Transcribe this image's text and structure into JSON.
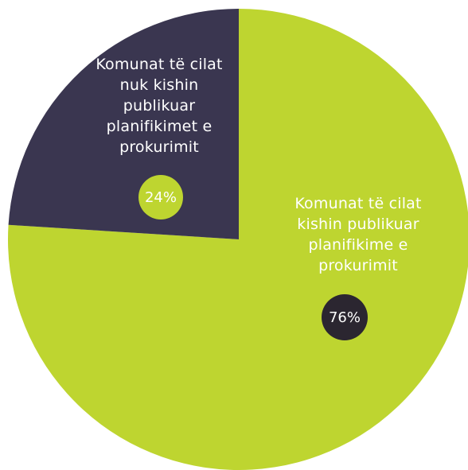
{
  "chart_data": {
    "type": "pie",
    "slices": [
      {
        "label": "Komunat të cilat kishin publikuar planifikime e prokurimit",
        "value": 76,
        "value_label": "76%",
        "color": "#bed530",
        "label_color": "#ffffff",
        "badge_color": "#2b2630",
        "badge_text_color": "#ffffff"
      },
      {
        "label": "Komunat të cilat nuk kishin publikuar planifikimet e prokurimit",
        "value": 24,
        "value_label": "24%",
        "color": "#3a3650",
        "label_color": "#ffffff",
        "badge_color": "#bed530",
        "badge_text_color": "#ffffff"
      }
    ],
    "start_angle": "12 o'clock",
    "direction": "clockwise",
    "legend": "none"
  }
}
